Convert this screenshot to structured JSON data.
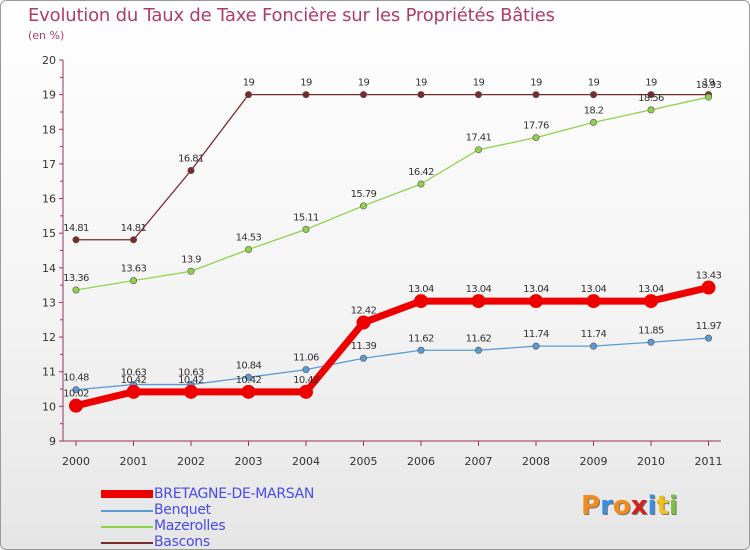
{
  "title": "Evolution du Taux de Taxe Foncière sur les Propriétés Bâties",
  "unit_label": "(en %)",
  "logo": {
    "letters": [
      "P",
      "r",
      "o",
      "x",
      "i",
      "t",
      "i"
    ],
    "colors": [
      "#f08c1c",
      "#3a8ee0",
      "#f08c1c",
      "#d02020",
      "#3a8ee0",
      "#f0c020",
      "#7ac040"
    ]
  },
  "chart_data": {
    "type": "line",
    "title": "Evolution du Taux de Taxe Foncière sur les Propriétés Bâties",
    "ylabel": "(en %)",
    "xlabel": "",
    "x": [
      "2000",
      "2001",
      "2002",
      "2003",
      "2004",
      "2005",
      "2006",
      "2007",
      "2008",
      "2009",
      "2010",
      "2011"
    ],
    "ylim": [
      9,
      20
    ],
    "yticks": [
      "9",
      "10",
      "11",
      "12",
      "13",
      "14",
      "15",
      "16",
      "17",
      "18",
      "19",
      "20"
    ],
    "grid": false,
    "legend_position": "bottom-left",
    "series": [
      {
        "name": "BRETAGNE-DE-MARSAN",
        "color": "#ee0000",
        "emphasis": true,
        "values": [
          10.02,
          10.42,
          10.42,
          10.42,
          10.42,
          12.42,
          13.04,
          13.04,
          13.04,
          13.04,
          13.04,
          13.43
        ],
        "labels": [
          "10.02",
          "10.42",
          "10.42",
          "10.42",
          "10.42",
          "12.42",
          "13.04",
          "13.04",
          "13.04",
          "13.04",
          "13.04",
          "13.43"
        ]
      },
      {
        "name": "Benquet",
        "color": "#5b9bd5",
        "emphasis": false,
        "values": [
          10.48,
          10.63,
          10.63,
          10.84,
          11.06,
          11.39,
          11.62,
          11.62,
          11.74,
          11.74,
          11.85,
          11.97
        ],
        "labels": [
          "10.48",
          "10.63",
          "10.63",
          "10.84",
          "11.06",
          "11.39",
          "11.62",
          "11.62",
          "11.74",
          "11.74",
          "11.85",
          "11.97"
        ]
      },
      {
        "name": "Mazerolles",
        "color": "#8fd24a",
        "emphasis": false,
        "values": [
          13.36,
          13.63,
          13.9,
          14.53,
          15.11,
          15.79,
          16.42,
          17.41,
          17.76,
          18.2,
          18.56,
          18.93
        ],
        "labels": [
          "13.36",
          "13.63",
          "13.9",
          "14.53",
          "15.11",
          "15.79",
          "16.42",
          "17.41",
          "17.76",
          "18.2",
          "18.56",
          "18.93"
        ]
      },
      {
        "name": "Bascons",
        "color": "#7a2a2a",
        "emphasis": false,
        "values": [
          14.81,
          14.81,
          16.81,
          19,
          19,
          19,
          19,
          19,
          19,
          19,
          19,
          19
        ],
        "labels": [
          "14.81",
          "14.81",
          "16.81",
          "19",
          "19",
          "19",
          "19",
          "19",
          "19",
          "19",
          "19",
          "19"
        ]
      }
    ]
  }
}
